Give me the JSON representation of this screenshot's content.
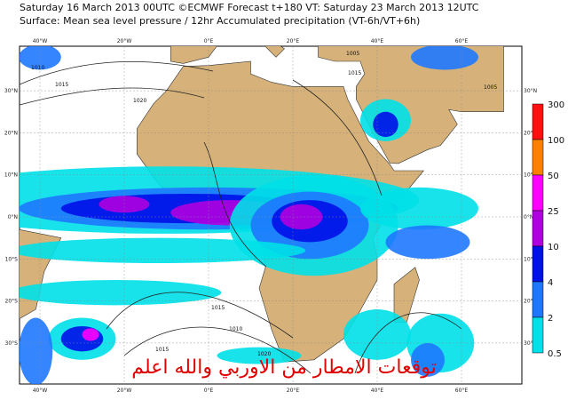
{
  "header": {
    "line1": "Saturday 16 March 2013 00UTC ©ECMWF Forecast t+180 VT: Saturday 23 March 2013 12UTC",
    "line2": "Surface: Mean sea level pressure / 12hr Accumulated precipitation (VT-6h/VT+6h)"
  },
  "map": {
    "longitude_labels": [
      "40°W",
      "20°W",
      "0°E",
      "20°E",
      "40°E",
      "60°E"
    ],
    "latitude_labels": [
      "30°N",
      "20°N",
      "10°N",
      "0°N",
      "10°S",
      "20°S",
      "30°S"
    ],
    "isobar_labels": [
      "1010",
      "1015",
      "1020",
      "1015",
      "1010",
      "1005",
      "1015",
      "1020",
      "1015",
      "1005"
    ]
  },
  "colorbar": {
    "levels": [
      300,
      100,
      50,
      25,
      10,
      4,
      2,
      0.5
    ],
    "colors": [
      "#ff1010",
      "#ff8000",
      "#ff00ff",
      "#b000e0",
      "#0010e8",
      "#1e78ff",
      "#00e0e8"
    ]
  },
  "watermark": "توقعات الامطار من الاوربي والله اعلم"
}
